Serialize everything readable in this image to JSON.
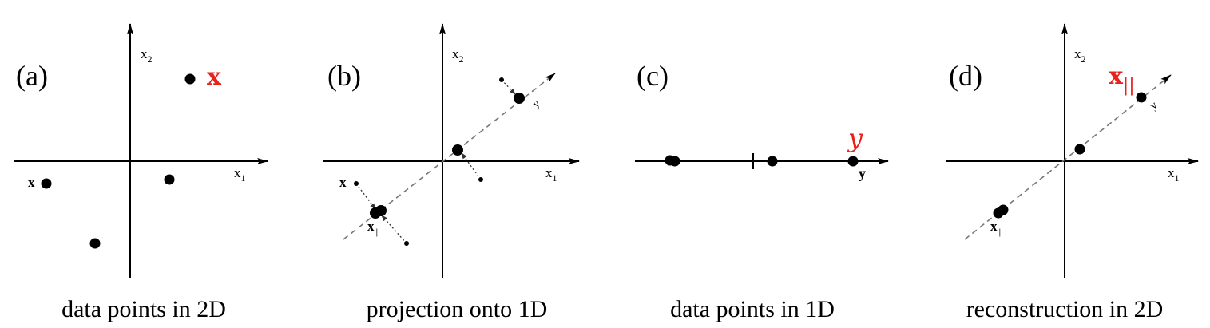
{
  "panels": [
    {
      "label": "(a)",
      "caption": "data points in 2D",
      "axis_x": "x",
      "axis_x_sub": "1",
      "axis_y": "x",
      "axis_y_sub": "2",
      "point_label": "x",
      "highlight_label": "x"
    },
    {
      "label": "(b)",
      "caption": "projection onto 1D",
      "axis_x": "x",
      "axis_x_sub": "1",
      "axis_y": "x",
      "axis_y_sub": "2",
      "point_label": "x",
      "projection_label": "x",
      "projection_sub": "||",
      "direction_label": "y"
    },
    {
      "label": "(c)",
      "caption": "data points in 1D",
      "axis_label": "y",
      "highlight_label": "y"
    },
    {
      "label": "(d)",
      "caption": "reconstruction in 2D",
      "axis_x": "x",
      "axis_x_sub": "1",
      "axis_y": "x",
      "axis_y_sub": "2",
      "projection_label": "x",
      "projection_sub": "||",
      "direction_label": "y",
      "highlight_label": "x",
      "highlight_sub": "||"
    }
  ],
  "colors": {
    "ink": "#000000",
    "highlight": "#e8211c",
    "dashed_line": "#777777"
  }
}
